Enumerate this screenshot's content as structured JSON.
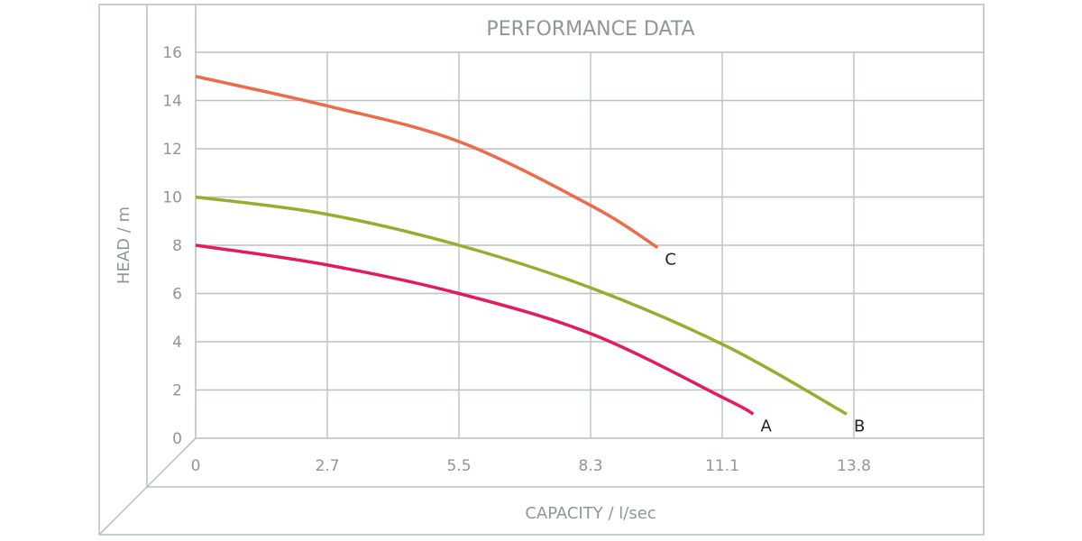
{
  "chart_data": {
    "type": "line",
    "title": "PERFORMANCE DATA",
    "xlabel": "CAPACITY / l/sec",
    "ylabel": "HEAD / m",
    "xticks": [
      "0",
      "2.7",
      "5.5",
      "8.3",
      "11.1",
      "13.8"
    ],
    "yticks": [
      "0",
      "2",
      "4",
      "6",
      "8",
      "10",
      "12",
      "14",
      "16"
    ],
    "xlim": [
      0,
      16.5
    ],
    "ylim": [
      0,
      16
    ],
    "grid": true,
    "series": [
      {
        "name": "A",
        "color": "#e5195e",
        "x": [
          0,
          2.7,
          5.5,
          8.3,
          11.1,
          11.65
        ],
        "y": [
          8,
          7.2,
          6.0,
          4.3,
          1.6,
          1.0
        ]
      },
      {
        "name": "B",
        "color": "#9aac2e",
        "x": [
          0,
          2.7,
          5.5,
          8.3,
          11.1,
          13.6
        ],
        "y": [
          10,
          9.3,
          8.0,
          6.2,
          3.8,
          1.0
        ]
      },
      {
        "name": "C",
        "color": "#ee6a4a",
        "x": [
          0,
          2.7,
          5.5,
          8.3,
          9.65
        ],
        "y": [
          15,
          13.8,
          12.3,
          9.6,
          7.9
        ]
      }
    ]
  }
}
